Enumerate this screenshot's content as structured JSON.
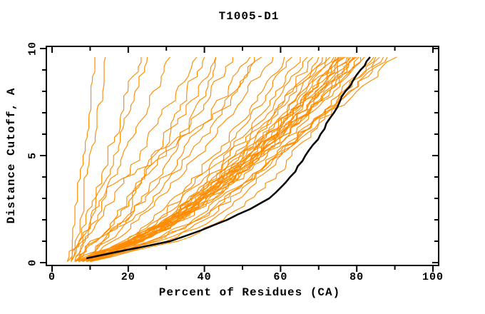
{
  "title": "T1005-D1",
  "axes": {
    "x": {
      "label": "Percent of Residues (CA)",
      "min": 0,
      "max": 100,
      "major_ticks": [
        0,
        20,
        40,
        60,
        80,
        100
      ],
      "minor_ticks": [
        10,
        30,
        50,
        70,
        90
      ]
    },
    "y": {
      "label": "Distance Cutoff, A",
      "min": 0,
      "max": 10,
      "major_ticks": [
        0,
        5,
        10
      ],
      "minor_ticks": [
        1,
        2,
        3,
        4,
        6,
        7,
        8,
        9
      ]
    }
  },
  "colors": {
    "model_line": "#FF8C00",
    "highlight_line": "#000000",
    "axis": "#000000",
    "background": "#FFFFFF"
  },
  "chart_data": {
    "type": "line",
    "title": "T1005-D1",
    "xlabel": "Percent of Residues (CA)",
    "ylabel": "Distance Cutoff, A",
    "xlim": [
      0,
      100
    ],
    "ylim": [
      0,
      10
    ],
    "grid": false,
    "legend": "none",
    "description": "CASP-style GDT plot: each orange curve is one model, percent of CA residues (x) within a distance cutoff (y); black curve is the highlighted model",
    "d_anchors": [
      0.05,
      1,
      2,
      3.5,
      5,
      6.5,
      8,
      9.6
    ],
    "orange_lines": [
      [
        4,
        4.8,
        5.4,
        6.5,
        7.6,
        8.8,
        9.8,
        11
      ],
      [
        5,
        5.8,
        6.8,
        8.2,
        9.7,
        11.1,
        12.5,
        14
      ],
      [
        4,
        6.5,
        8.6,
        11.5,
        14.4,
        17.2,
        19.9,
        23
      ],
      [
        6,
        7.6,
        9.8,
        12.9,
        15.9,
        18.9,
        21.8,
        25
      ],
      [
        5,
        7.2,
        10.2,
        14.4,
        18.5,
        22.7,
        26.6,
        31
      ],
      [
        6,
        8.7,
        12.4,
        17.6,
        22.6,
        27.8,
        32.6,
        38
      ],
      [
        7,
        11.7,
        16.2,
        21.8,
        26.8,
        31.1,
        35.4,
        40
      ],
      [
        6,
        11.2,
        16.3,
        22.6,
        28.1,
        33,
        38,
        43
      ],
      [
        8,
        13.5,
        18.9,
        25.5,
        31.4,
        36.5,
        41.7,
        47
      ],
      [
        5,
        8,
        12,
        14,
        30,
        36,
        40,
        43
      ],
      [
        7,
        13.3,
        19.5,
        27.1,
        34,
        39.9,
        45.9,
        52
      ],
      [
        8,
        14.6,
        21.2,
        29.1,
        36.1,
        42.3,
        48.6,
        55
      ],
      [
        6,
        10,
        20,
        22,
        26,
        40,
        48,
        53
      ],
      [
        9,
        15.9,
        22.7,
        31,
        38.4,
        44.8,
        51.4,
        58
      ],
      [
        8,
        18.6,
        26.6,
        35,
        42.5,
        49.3,
        55.2,
        61
      ],
      [
        9,
        19.8,
        27.9,
        36.5,
        44.1,
        51.1,
        57.1,
        63
      ],
      [
        8,
        19.4,
        27.9,
        37.1,
        45.1,
        52.5,
        58.7,
        65
      ],
      [
        9,
        20.6,
        29.3,
        38.6,
        46.7,
        54.2,
        60.6,
        67
      ],
      [
        10,
        21.7,
        30.5,
        39.8,
        48,
        55.6,
        62.1,
        68.5
      ],
      [
        8,
        20.4,
        29.7,
        39.6,
        48.3,
        56.4,
        63.2,
        70
      ],
      [
        9,
        21.4,
        30.7,
        40.6,
        49.3,
        57.4,
        64.2,
        71
      ],
      [
        10,
        22.4,
        31.7,
        41.6,
        50.3,
        58.4,
        65.2,
        72
      ],
      [
        7,
        20.2,
        30.1,
        40.7,
        49.9,
        58.5,
        65.7,
        73
      ],
      [
        8,
        21.2,
        31.1,
        41.7,
        50.9,
        59.5,
        66.7,
        74
      ],
      [
        9,
        22.1,
        31.9,
        42.4,
        51.6,
        60.1,
        67.3,
        74.5
      ],
      [
        10,
        23,
        32.8,
        43.2,
        52.3,
        60.7,
        67.9,
        75
      ],
      [
        6,
        19.9,
        30.3,
        41.4,
        51.2,
        60.2,
        67.9,
        75.5
      ],
      [
        7,
        20.8,
        31.2,
        42.2,
        51.9,
        60.8,
        68.4,
        76
      ],
      [
        8,
        21.7,
        32,
        42.9,
        52.5,
        61.4,
        69,
        76.5
      ],
      [
        9,
        22.6,
        32.8,
        43.7,
        53.2,
        62,
        69.5,
        77
      ],
      [
        10,
        23.5,
        33.6,
        44.4,
        53.9,
        62.7,
        70.1,
        77.5
      ],
      [
        6,
        20.4,
        31.2,
        42.7,
        52.8,
        62.2,
        70.1,
        78
      ],
      [
        7,
        21.3,
        32,
        43.5,
        53.5,
        62.8,
        70.6,
        78.5
      ],
      [
        8,
        22.2,
        32.9,
        44.2,
        54.2,
        63.4,
        71.2,
        79
      ],
      [
        9,
        23.1,
        33.7,
        45,
        54.8,
        64,
        71.7,
        79.5
      ],
      [
        10,
        24,
        34.5,
        45.7,
        55.5,
        64.6,
        72.3,
        80
      ],
      [
        7,
        21.7,
        32.7,
        44.5,
        54.8,
        64.3,
        72.4,
        80.5
      ],
      [
        8,
        22.6,
        33.6,
        45.2,
        55.5,
        64.9,
        73,
        81
      ],
      [
        9,
        23.6,
        34.6,
        46.2,
        56.5,
        65.9,
        74,
        82
      ],
      [
        9,
        25.5,
        37,
        48.5,
        58.5,
        68,
        76,
        84.5
      ],
      [
        10,
        27,
        38.5,
        49.5,
        59,
        68.3,
        76.5,
        85
      ],
      [
        9,
        28,
        40,
        50,
        59,
        68.5,
        77,
        86
      ],
      [
        10,
        26,
        38,
        49,
        60,
        70,
        78.5,
        87
      ],
      [
        10,
        30,
        42,
        52,
        60,
        68,
        78,
        88
      ],
      [
        10,
        33,
        45,
        56,
        63,
        70,
        80,
        90.5
      ]
    ],
    "black_line": {
      "d": [
        0.2,
        0.5,
        1,
        1.5,
        2,
        2.5,
        3,
        3.5,
        4,
        4.5,
        5,
        5.5,
        6,
        6.5,
        7,
        7.5,
        8,
        8.5,
        9,
        9.6
      ],
      "pct": [
        9,
        17,
        31,
        39,
        46,
        52,
        57,
        60,
        62.5,
        64.5,
        66.5,
        68.5,
        70.5,
        72,
        74,
        75.5,
        77,
        79,
        81,
        83.5
      ]
    }
  }
}
